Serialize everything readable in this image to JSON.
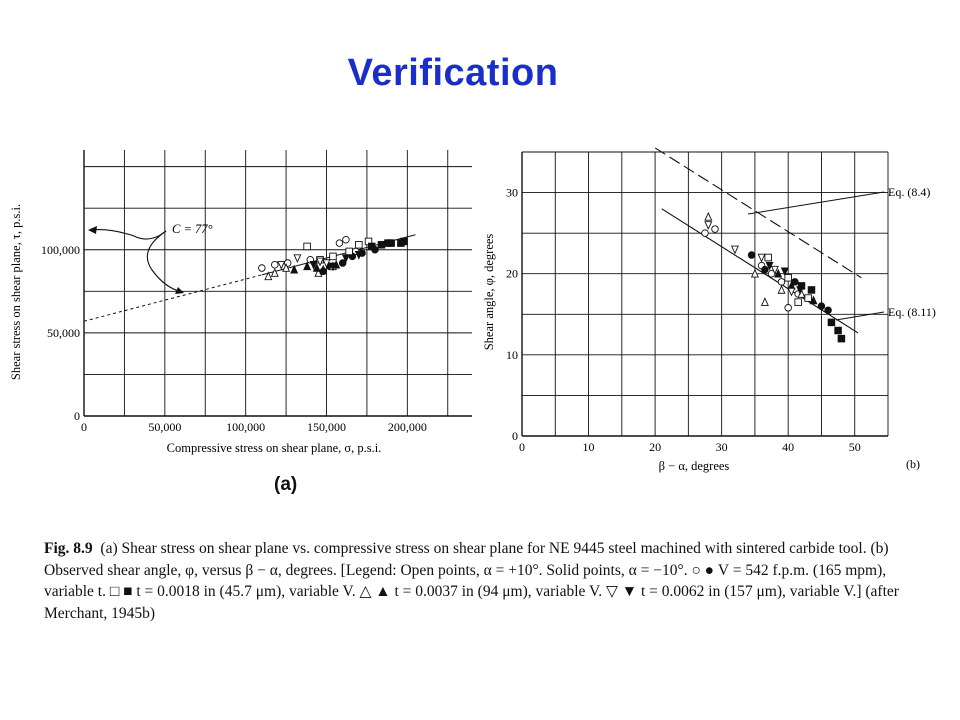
{
  "slide": {
    "title": "Verification"
  },
  "panel_a_label": "(a)",
  "chart_data": [
    {
      "id": "a",
      "type": "scatter",
      "xlabel": "Compressive stress on shear plane, σ, p.s.i.",
      "ylabel": "Shear stress on shear plane, τ, p.s.i.",
      "xlim": [
        0,
        240000
      ],
      "ylim": [
        0,
        160000
      ],
      "x_ticks": [
        0,
        50000,
        100000,
        150000,
        200000
      ],
      "x_tick_labels": [
        "0",
        "50,000",
        "100,000",
        "150,000",
        "200,000"
      ],
      "y_ticks": [
        0,
        50000,
        100000
      ],
      "y_tick_labels": [
        "0",
        "50,000",
        "100,000"
      ],
      "grid": true,
      "annotation": "C = 77°",
      "fit_line": {
        "x": [
          0,
          205000
        ],
        "y": [
          57000,
          109000
        ],
        "dashed_until_x": 110000
      },
      "series": [
        {
          "marker": "open-circle",
          "x": [
            110000,
            118000,
            126000,
            140000,
            158000,
            162000,
            168000
          ],
          "y": [
            89000,
            91000,
            92000,
            94000,
            104000,
            106000,
            99000
          ]
        },
        {
          "marker": "filled-circle",
          "x": [
            148000,
            152000,
            160000,
            166000,
            172000,
            180000
          ],
          "y": [
            87000,
            90000,
            92000,
            96000,
            98000,
            100000
          ]
        },
        {
          "marker": "open-square",
          "x": [
            138000,
            146000,
            154000,
            164000,
            170000,
            176000
          ],
          "y": [
            102000,
            94000,
            96000,
            99000,
            103000,
            105000
          ]
        },
        {
          "marker": "filled-square",
          "x": [
            178000,
            184000,
            188000,
            190000,
            196000,
            198000
          ],
          "y": [
            102000,
            103000,
            104000,
            104000,
            104000,
            105000
          ]
        },
        {
          "marker": "open-triangle-up",
          "x": [
            114000,
            118000,
            125000,
            145000,
            154000
          ],
          "y": [
            84000,
            86000,
            89000,
            86000,
            90000
          ]
        },
        {
          "marker": "filled-triangle-up",
          "x": [
            130000,
            138000,
            144000,
            148000,
            156000
          ],
          "y": [
            88000,
            90000,
            89000,
            88000,
            91000
          ]
        },
        {
          "marker": "open-triangle-down",
          "x": [
            122000,
            132000,
            146000,
            150000
          ],
          "y": [
            91000,
            95000,
            93000,
            92000
          ]
        },
        {
          "marker": "filled-triangle-down",
          "x": [
            142000,
            154000,
            162000,
            170000
          ],
          "y": [
            91000,
            90000,
            95000,
            97000
          ]
        }
      ]
    },
    {
      "id": "b",
      "type": "scatter",
      "xlabel": "β − α, degrees",
      "ylabel": "Shear angle, φ, degrees",
      "panel_label": "(b)",
      "xlim": [
        0,
        55
      ],
      "ylim": [
        0,
        35
      ],
      "x_ticks": [
        0,
        10,
        20,
        30,
        40,
        50
      ],
      "x_tick_labels": [
        "0",
        "10",
        "20",
        "30",
        "40",
        "50"
      ],
      "y_ticks": [
        0,
        10,
        20,
        30
      ],
      "y_tick_labels": [
        "0",
        "10",
        "20",
        "30"
      ],
      "grid": true,
      "lines": [
        {
          "label": "Eq. (8.4)",
          "style": "dashed",
          "x": [
            20,
            51
          ],
          "y": [
            35.5,
            19.5
          ]
        },
        {
          "label": "Eq. (8.11)",
          "style": "solid",
          "x": [
            21,
            50.5
          ],
          "y": [
            28,
            12.7
          ]
        }
      ],
      "series": [
        {
          "marker": "open-circle",
          "x": [
            27.5,
            29,
            36,
            37.5,
            39,
            40,
            41.5
          ],
          "y": [
            25,
            25.5,
            21,
            20,
            19,
            15.8,
            17.5
          ]
        },
        {
          "marker": "filled-circle",
          "x": [
            34.5,
            36.5,
            41,
            45,
            46
          ],
          "y": [
            22.3,
            20.5,
            19,
            16,
            15.5
          ]
        },
        {
          "marker": "open-square",
          "x": [
            37,
            40,
            41.5,
            43
          ],
          "y": [
            22,
            19.5,
            16.5,
            17
          ]
        },
        {
          "marker": "filled-square",
          "x": [
            42,
            43.5,
            46.5,
            47.5,
            48
          ],
          "y": [
            18.5,
            18,
            14,
            13,
            12
          ]
        },
        {
          "marker": "open-triangle-up",
          "x": [
            28,
            35,
            36.5,
            39,
            42
          ],
          "y": [
            27,
            20,
            16.5,
            18,
            17.5
          ]
        },
        {
          "marker": "filled-triangle-up",
          "x": [
            38.5,
            40.5,
            43.8
          ],
          "y": [
            20,
            18.5,
            16.7
          ]
        },
        {
          "marker": "open-triangle-down",
          "x": [
            28,
            32,
            36,
            38,
            40.5
          ],
          "y": [
            26,
            23,
            22,
            20.5,
            17.8
          ]
        },
        {
          "marker": "filled-triangle-down",
          "x": [
            37.2,
            39.5,
            41.8
          ],
          "y": [
            21,
            20.3,
            18
          ]
        }
      ]
    }
  ],
  "caption": {
    "label": "Fig. 8.9",
    "text": "(a) Shear stress on shear plane vs. compressive stress on shear plane for NE 9445 steel machined with sintered carbide tool. (b) Observed shear angle, φ, versus β − α, degrees. [Legend: Open points, α = +10°. Solid points, α = −10°. ○ ● V = 542 f.p.m. (165 mpm), variable t. □ ■ t = 0.0018 in (45.7 μm), variable V. △ ▲ t = 0.0037 in (94 μm), variable V. ▽ ▼ t = 0.0062 in (157 μm), variable V.] (after Merchant, 1945b)"
  }
}
